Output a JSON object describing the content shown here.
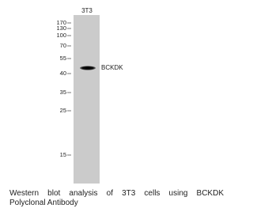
{
  "lane_label": "3T3",
  "markers": [
    "170",
    "130",
    "100",
    "70",
    "55",
    "40",
    "35",
    "25",
    "15"
  ],
  "band_label": "BCKDK",
  "caption": {
    "lines": [
      "Western blot analysis of 3T3 cells using BCKDK",
      "Polyclonal Antibody"
    ]
  }
}
